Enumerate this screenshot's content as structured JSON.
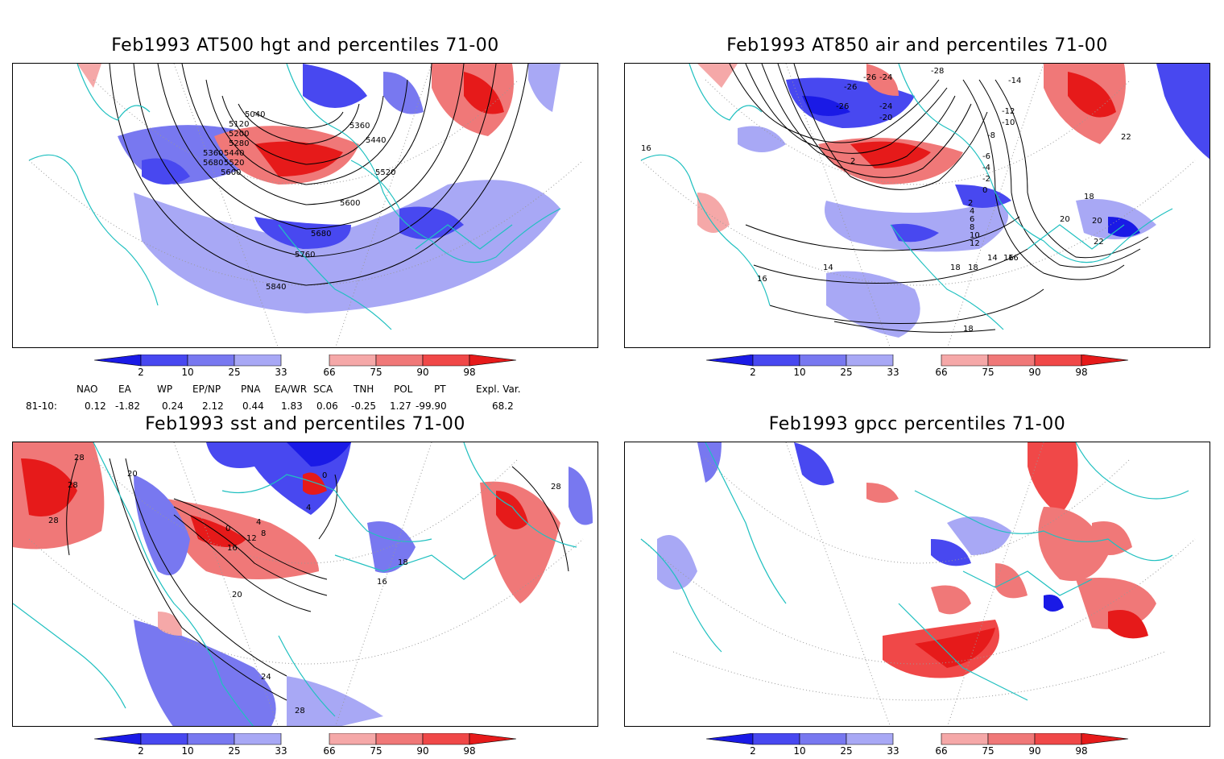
{
  "panels": [
    {
      "id": "hgt",
      "title": "Feb1993 AT500 hgt and percentiles 71-00",
      "contour_labels": [
        "5040",
        "5120",
        "5200",
        "5280",
        "5360",
        "5440",
        "5520",
        "5600",
        "5680",
        "5440",
        "5520",
        "5360",
        "5600",
        "5680",
        "5760",
        "5840"
      ]
    },
    {
      "id": "air",
      "title": "Feb1993 AT850 air and percentiles 71-00",
      "contour_labels": [
        "-26",
        "-24",
        "-28",
        "-26",
        "-26",
        "-24",
        "-20",
        "-14",
        "-12",
        "-10",
        "-8",
        "-6",
        "-4",
        "-2",
        "0",
        "2",
        "4",
        "6",
        "8",
        "10",
        "12",
        "14",
        "16",
        "18",
        "20",
        "22",
        "18",
        "16",
        "14",
        "16",
        "18",
        "20",
        "22",
        "18",
        "16",
        "2"
      ]
    },
    {
      "id": "sst",
      "title": "Feb1993 sst and percentiles 71-00",
      "contour_labels": [
        "28",
        "20",
        "28",
        "28",
        "0",
        "4",
        "8",
        "12",
        "16",
        "20",
        "24",
        "28",
        "16",
        "18",
        "4",
        "0",
        "28"
      ]
    },
    {
      "id": "gpcc",
      "title": "Feb1993 gpcc percentiles 71-00",
      "contour_labels": []
    }
  ],
  "colorbar": {
    "labels": [
      "2",
      "10",
      "25",
      "33",
      "66",
      "75",
      "90",
      "98"
    ],
    "colors": {
      "c1": "#1a1ae6",
      "c2": "#4848f0",
      "c3": "#7878f0",
      "c4": "#a8a8f5",
      "w1": "#f5a8a8",
      "w2": "#f07878",
      "w3": "#f04848",
      "w4": "#e61a1a"
    }
  },
  "indices": {
    "header": [
      "NAO",
      "EA",
      "WP",
      "EP/NP",
      "PNA",
      "EA/WR",
      "SCA",
      "TNH",
      "POL",
      "PT",
      "Expl. Var."
    ],
    "period": "81-10:",
    "values": [
      "0.12",
      "-1.82",
      "0.24",
      "2.12",
      "0.44",
      "1.83",
      "0.06",
      "-0.25",
      "1.27",
      "-99.90",
      "68.2"
    ]
  },
  "map_colors": {
    "coast": "#20c0c0",
    "grid": "#999999",
    "contour": "#000000"
  }
}
